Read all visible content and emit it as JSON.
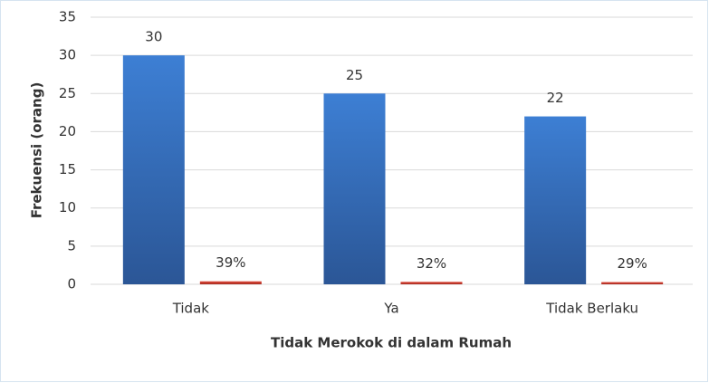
{
  "chart_data": {
    "type": "bar",
    "x_label": "Tidak Merokok di dalam Rumah",
    "y_label": "Frekuensi (orang)",
    "categories": [
      "Tidak",
      "Ya",
      "Tidak Berlaku"
    ],
    "series": [
      {
        "color": "#3a72c4",
        "values": [
          30,
          25,
          22
        ]
      },
      {
        "color": "#c0392b",
        "values": [
          0.39,
          0.32,
          0.29
        ],
        "value_labels": [
          "39%",
          "32%",
          "29%"
        ]
      }
    ],
    "ylim": [
      0,
      35
    ],
    "yticks": [
      0,
      5,
      10,
      15,
      20,
      25,
      30,
      35
    ],
    "grid": true
  }
}
